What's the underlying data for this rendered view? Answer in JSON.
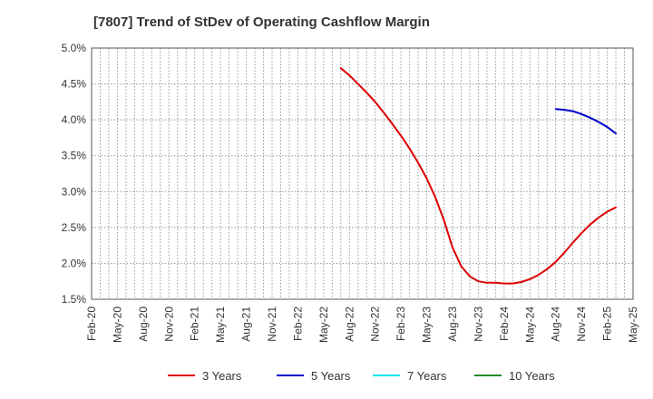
{
  "chart_data": {
    "type": "line",
    "title": "[7807]  Trend of StDev of Operating Cashflow Margin",
    "xlabel": "",
    "ylabel": "",
    "ylim": [
      1.5,
      5.0
    ],
    "y_ticks": [
      "5.0%",
      "4.5%",
      "4.0%",
      "3.5%",
      "3.0%",
      "2.5%",
      "2.0%",
      "1.5%"
    ],
    "y_tick_values": [
      5.0,
      4.5,
      4.0,
      3.5,
      3.0,
      2.5,
      2.0,
      1.5
    ],
    "x_ticks": [
      "Feb-20",
      "May-20",
      "Aug-20",
      "Nov-20",
      "Feb-21",
      "May-21",
      "Aug-21",
      "Nov-21",
      "Feb-22",
      "May-22",
      "Aug-22",
      "Nov-22",
      "Feb-23",
      "May-23",
      "Aug-23",
      "Nov-23",
      "Feb-24",
      "May-24",
      "Aug-24",
      "Nov-24",
      "Feb-25",
      "May-25"
    ],
    "grid": true,
    "legend_position": "bottom",
    "series": [
      {
        "name": "3 Years",
        "color": "#dd0000",
        "points": [
          [
            "Jul-22",
            4.72
          ],
          [
            "Aug-22",
            4.62
          ],
          [
            "Sep-22",
            4.5
          ],
          [
            "Oct-22",
            4.38
          ],
          [
            "Nov-22",
            4.25
          ],
          [
            "Dec-22",
            4.1
          ],
          [
            "Jan-23",
            3.94
          ],
          [
            "Feb-23",
            3.78
          ],
          [
            "Mar-23",
            3.6
          ],
          [
            "Apr-23",
            3.4
          ],
          [
            "May-23",
            3.18
          ],
          [
            "Jun-23",
            2.92
          ],
          [
            "Jul-23",
            2.6
          ],
          [
            "Aug-23",
            2.22
          ],
          [
            "Sep-23",
            1.96
          ],
          [
            "Oct-23",
            1.82
          ],
          [
            "Nov-23",
            1.75
          ],
          [
            "Dec-23",
            1.73
          ],
          [
            "Jan-24",
            1.73
          ],
          [
            "Feb-24",
            1.72
          ],
          [
            "Mar-24",
            1.72
          ],
          [
            "Apr-24",
            1.74
          ],
          [
            "May-24",
            1.78
          ],
          [
            "Jun-24",
            1.84
          ],
          [
            "Jul-24",
            1.92
          ],
          [
            "Aug-24",
            2.02
          ],
          [
            "Sep-24",
            2.15
          ],
          [
            "Oct-24",
            2.29
          ],
          [
            "Nov-24",
            2.42
          ],
          [
            "Dec-24",
            2.54
          ],
          [
            "Jan-25",
            2.64
          ],
          [
            "Feb-25",
            2.72
          ],
          [
            "Mar-25",
            2.78
          ]
        ]
      },
      {
        "name": "5 Years",
        "color": "#0000cc",
        "points": [
          [
            "Aug-24",
            4.15
          ],
          [
            "Sep-24",
            4.14
          ],
          [
            "Oct-24",
            4.12
          ],
          [
            "Nov-24",
            4.08
          ],
          [
            "Dec-24",
            4.03
          ],
          [
            "Jan-25",
            3.97
          ],
          [
            "Feb-25",
            3.9
          ],
          [
            "Mar-25",
            3.81
          ]
        ]
      },
      {
        "name": "7 Years",
        "color": "#00e5ee",
        "points": []
      },
      {
        "name": "10 Years",
        "color": "#228822",
        "points": []
      }
    ]
  }
}
